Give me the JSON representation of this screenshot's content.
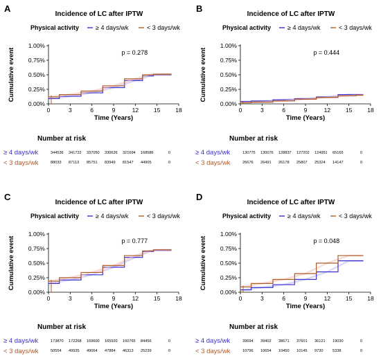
{
  "colors": {
    "high": "#3a2fd0",
    "low": "#b05a2a",
    "band_high": "#b9b4ef",
    "band_low": "#f0c0b0"
  },
  "legend": {
    "title": "Physical activity",
    "high_label": "≥ 4 days/wk",
    "low_label": "< 3 days/wk"
  },
  "risk_title": "Number at risk",
  "chart_data": [
    {
      "panel_letter": "A",
      "type": "line",
      "title": "Incidence of LC after IPTW",
      "xlabel": "Time (Years)",
      "ylabel": "Cumulative event",
      "xlim": [
        0,
        18
      ],
      "ylim": [
        0,
        1.0
      ],
      "xticks": [
        0,
        3,
        6,
        9,
        12,
        15,
        18
      ],
      "yticks": [
        "0.00%",
        "0.25%",
        "0.50%",
        "0.75%",
        "1.00%"
      ],
      "p_value": "p = 0.278",
      "series": [
        {
          "name": "≥ 4 days/wk",
          "x": [
            0,
            3,
            6,
            9,
            12,
            14,
            15,
            17
          ],
          "y": [
            0.09,
            0.13,
            0.19,
            0.28,
            0.4,
            0.48,
            0.5,
            0.5
          ]
        },
        {
          "name": "< 3 days/wk",
          "x": [
            0,
            3,
            6,
            9,
            12,
            14,
            15,
            17
          ],
          "y": [
            0.12,
            0.16,
            0.22,
            0.31,
            0.43,
            0.5,
            0.51,
            0.51
          ]
        }
      ],
      "risk_table": {
        "high": [
          "344536",
          "341722",
          "337050",
          "330626",
          "321694",
          "168586",
          "0"
        ],
        "low": [
          "88033",
          "87113",
          "85751",
          "83949",
          "81547",
          "44905",
          "0"
        ]
      }
    },
    {
      "panel_letter": "B",
      "type": "line",
      "title": "Incidence of LC after IPTW",
      "xlabel": "Time (Years)",
      "ylabel": "Cumulative event",
      "xlim": [
        0,
        18
      ],
      "ylim": [
        0,
        1.0
      ],
      "xticks": [
        0,
        3,
        6,
        9,
        12,
        15,
        18
      ],
      "yticks": [
        "0.00%",
        "0.25%",
        "0.50%",
        "0.75%",
        "1.00%"
      ],
      "p_value": "p = 0.444",
      "series": [
        {
          "name": "≥ 4 days/wk",
          "x": [
            0,
            3,
            6,
            9,
            12,
            15,
            17
          ],
          "y": [
            0.04,
            0.05,
            0.07,
            0.09,
            0.12,
            0.16,
            0.16
          ]
        },
        {
          "name": "< 3 days/wk",
          "x": [
            0,
            3,
            6,
            9,
            12,
            15,
            17
          ],
          "y": [
            0.02,
            0.03,
            0.05,
            0.08,
            0.11,
            0.14,
            0.15
          ]
        }
      ],
      "risk_table": {
        "high": [
          "130775",
          "130076",
          "128837",
          "127202",
          "124951",
          "65165",
          "0"
        ],
        "low": [
          "26676",
          "26491",
          "26178",
          "25807",
          "25324",
          "14147",
          "0"
        ]
      }
    },
    {
      "panel_letter": "C",
      "type": "line",
      "title": "Incidence of LC after IPTW",
      "xlabel": "Time (Years)",
      "ylabel": "Cumulative event",
      "xlim": [
        0,
        18
      ],
      "ylim": [
        0,
        1.0
      ],
      "xticks": [
        0,
        3,
        6,
        9,
        12,
        15,
        18
      ],
      "yticks": [
        "0.00%",
        "0.25%",
        "0.50%",
        "0.75%",
        "1.00%"
      ],
      "p_value": "p = 0.777",
      "series": [
        {
          "name": "≥ 4 days/wk",
          "x": [
            0,
            3,
            6,
            9,
            12,
            14,
            15,
            17
          ],
          "y": [
            0.15,
            0.21,
            0.3,
            0.43,
            0.6,
            0.7,
            0.72,
            0.72
          ]
        },
        {
          "name": "< 3 days/wk",
          "x": [
            0,
            3,
            6,
            9,
            12,
            14,
            15,
            17
          ],
          "y": [
            0.19,
            0.25,
            0.34,
            0.46,
            0.63,
            0.71,
            0.73,
            0.73
          ]
        }
      ],
      "risk_table": {
        "high": [
          "173870",
          "172268",
          "169600",
          "165920",
          "160765",
          "84456",
          "0"
        ],
        "low": [
          "50554",
          "49935",
          "49064",
          "47884",
          "46313",
          "25239",
          "0"
        ]
      }
    },
    {
      "panel_letter": "D",
      "type": "line",
      "title": "Incidence of LC after IPTW",
      "xlabel": "Time (Years)",
      "ylabel": "Cumulative event",
      "xlim": [
        0,
        18
      ],
      "ylim": [
        0,
        1.0
      ],
      "xticks": [
        0,
        3,
        6,
        9,
        12,
        15,
        18
      ],
      "yticks": [
        "0.00%",
        "0.25%",
        "0.50%",
        "0.75%",
        "1.00%"
      ],
      "p_value": "p = 0.048",
      "series": [
        {
          "name": "≥ 4 days/wk",
          "x": [
            0,
            3,
            6,
            9,
            12,
            15,
            17
          ],
          "y": [
            0.04,
            0.08,
            0.13,
            0.22,
            0.35,
            0.54,
            0.54
          ]
        },
        {
          "name": "< 3 days/wk",
          "x": [
            0,
            3,
            6,
            9,
            12,
            15,
            17
          ],
          "y": [
            0.09,
            0.15,
            0.22,
            0.32,
            0.5,
            0.63,
            0.63
          ]
        }
      ],
      "risk_table": {
        "high": [
          "39694",
          "39402",
          "38671",
          "37601",
          "36121",
          "19030",
          "0"
        ],
        "low": [
          "10796",
          "10654",
          "10450",
          "10145",
          "9730",
          "5338",
          "0"
        ]
      }
    }
  ]
}
